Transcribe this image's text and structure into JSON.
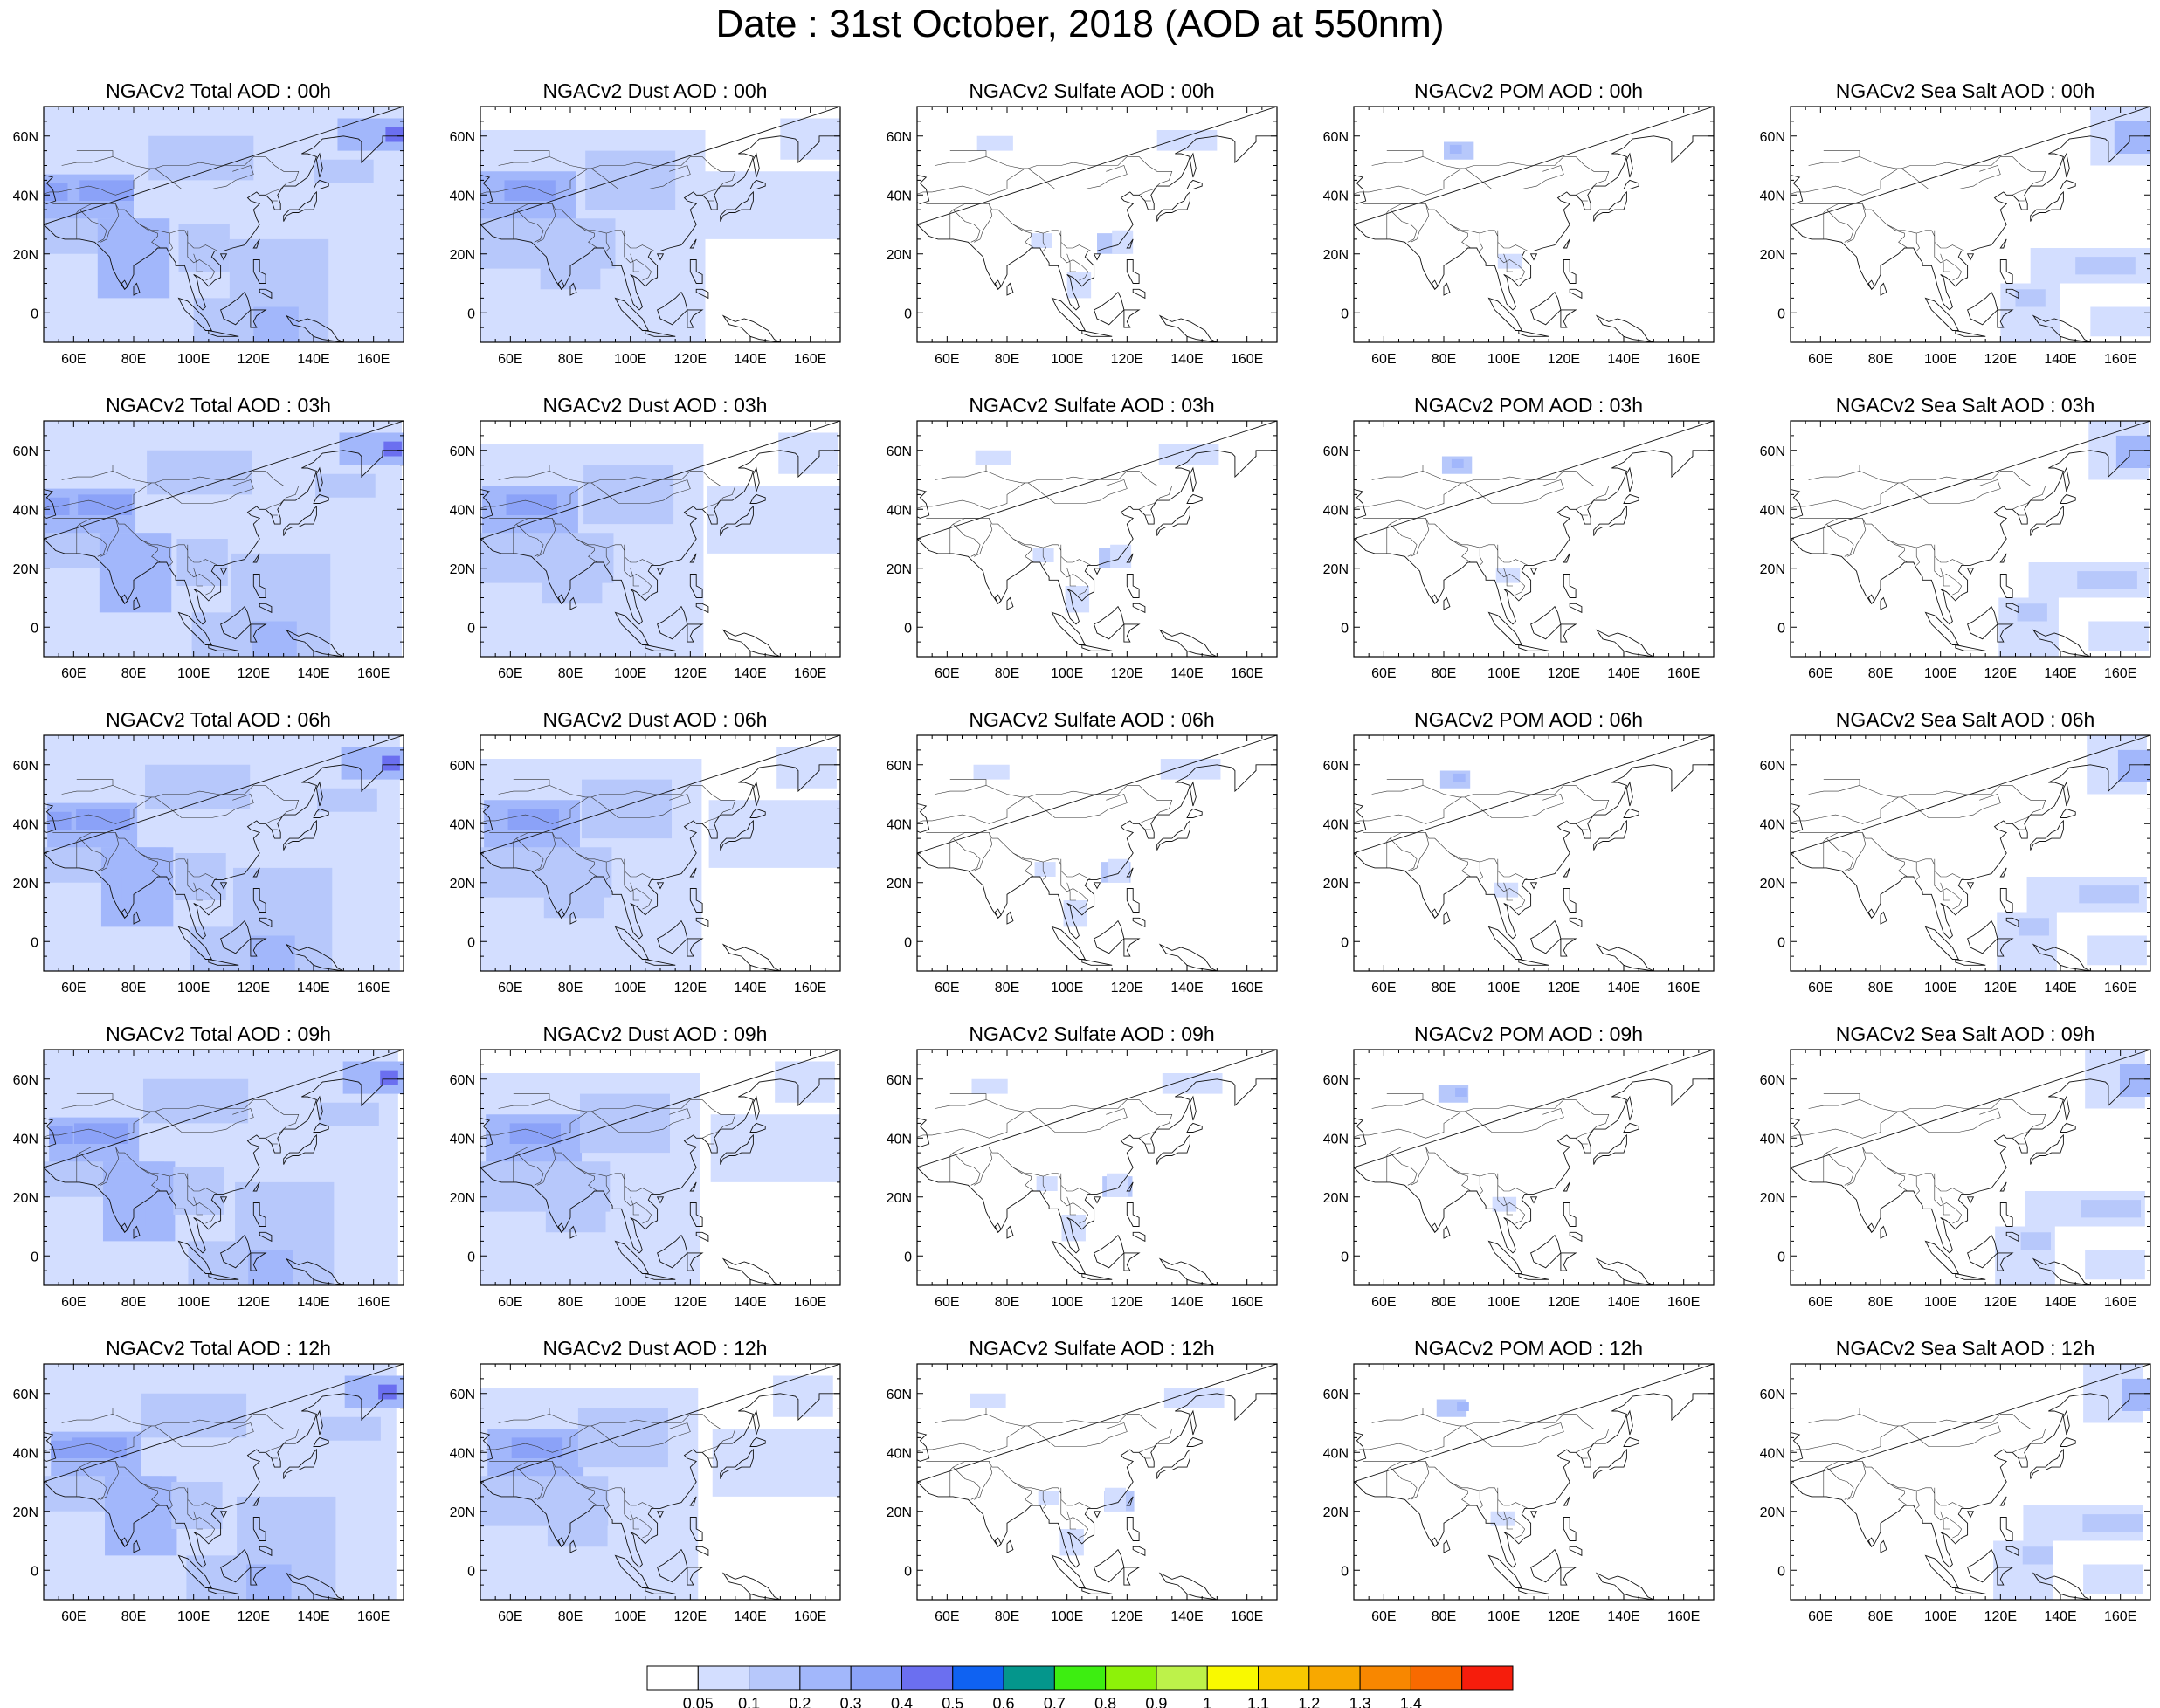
{
  "title": "Date : 31st October, 2018 (AOD at 550nm)",
  "chart_data": {
    "type": "heatmap",
    "map_extent": {
      "lon": [
        50,
        170
      ],
      "lat": [
        -10,
        70
      ]
    },
    "x_ticks": [
      {
        "v": 60,
        "label": "60E"
      },
      {
        "v": 80,
        "label": "80E"
      },
      {
        "v": 100,
        "label": "100E"
      },
      {
        "v": 120,
        "label": "120E"
      },
      {
        "v": 140,
        "label": "140E"
      },
      {
        "v": 160,
        "label": "160E"
      }
    ],
    "y_ticks": [
      {
        "v": 60,
        "label": "60N"
      },
      {
        "v": 40,
        "label": "40N"
      },
      {
        "v": 20,
        "label": "20N"
      },
      {
        "v": 0,
        "label": "0"
      }
    ],
    "colorbar": {
      "colors": [
        "#ffffff",
        "#d3deff",
        "#b7c8fb",
        "#a2b7fb",
        "#8ba2f8",
        "#6b6ff0",
        "#0f62f2",
        "#04968c",
        "#3dee11",
        "#8df209",
        "#bdf24a",
        "#f9f900",
        "#f8c800",
        "#f8a800",
        "#f88700",
        "#f86a00",
        "#f61d0c"
      ],
      "labels": [
        "0.05",
        "0.1",
        "0.2",
        "0.3",
        "0.4",
        "0.5",
        "0.6",
        "0.7",
        "0.8",
        "0.9",
        "1",
        "1.1",
        "1.2",
        "1.3",
        "1.4"
      ]
    },
    "panels": [
      {
        "title": "NGACv2 Total AOD : 00h",
        "species": "total",
        "hour": "00h"
      },
      {
        "title": "NGACv2 Dust AOD : 00h",
        "species": "dust",
        "hour": "00h"
      },
      {
        "title": "NGACv2 Sulfate AOD : 00h",
        "species": "sulfate",
        "hour": "00h"
      },
      {
        "title": "NGACv2 POM AOD : 00h",
        "species": "pom",
        "hour": "00h"
      },
      {
        "title": "NGACv2 Sea Salt AOD : 00h",
        "species": "seasalt",
        "hour": "00h"
      },
      {
        "title": "NGACv2 Total AOD : 03h",
        "species": "total",
        "hour": "03h"
      },
      {
        "title": "NGACv2 Dust AOD : 03h",
        "species": "dust",
        "hour": "03h"
      },
      {
        "title": "NGACv2 Sulfate AOD : 03h",
        "species": "sulfate",
        "hour": "03h"
      },
      {
        "title": "NGACv2 POM AOD : 03h",
        "species": "pom",
        "hour": "03h"
      },
      {
        "title": "NGACv2 Sea Salt AOD : 03h",
        "species": "seasalt",
        "hour": "03h"
      },
      {
        "title": "NGACv2 Total AOD : 06h",
        "species": "total",
        "hour": "06h"
      },
      {
        "title": "NGACv2 Dust AOD : 06h",
        "species": "dust",
        "hour": "06h"
      },
      {
        "title": "NGACv2 Sulfate AOD : 06h",
        "species": "sulfate",
        "hour": "06h"
      },
      {
        "title": "NGACv2 POM AOD : 06h",
        "species": "pom",
        "hour": "06h"
      },
      {
        "title": "NGACv2 Sea Salt AOD : 06h",
        "species": "seasalt",
        "hour": "06h"
      },
      {
        "title": "NGACv2 Total AOD : 09h",
        "species": "total",
        "hour": "09h"
      },
      {
        "title": "NGACv2 Dust AOD : 09h",
        "species": "dust",
        "hour": "09h"
      },
      {
        "title": "NGACv2 Sulfate AOD : 09h",
        "species": "sulfate",
        "hour": "09h"
      },
      {
        "title": "NGACv2 POM AOD : 09h",
        "species": "pom",
        "hour": "09h"
      },
      {
        "title": "NGACv2 Sea Salt  AOD : 09h",
        "species": "seasalt",
        "hour": "09h"
      },
      {
        "title": "NGACv2 Total AOD  : 12h",
        "species": "total",
        "hour": "12h"
      },
      {
        "title": "NGACv2 Dust AOD : 12h",
        "species": "dust",
        "hour": "12h"
      },
      {
        "title": "NGACv2 Sulfate AOD : 12h",
        "species": "sulfate",
        "hour": "12h"
      },
      {
        "title": "NGACv2 POM  AOD : 12h",
        "species": "pom",
        "hour": "12h"
      },
      {
        "title": "NGACv2 Sea Salt  AOD : 12h",
        "species": "seasalt",
        "hour": "12h"
      }
    ]
  }
}
